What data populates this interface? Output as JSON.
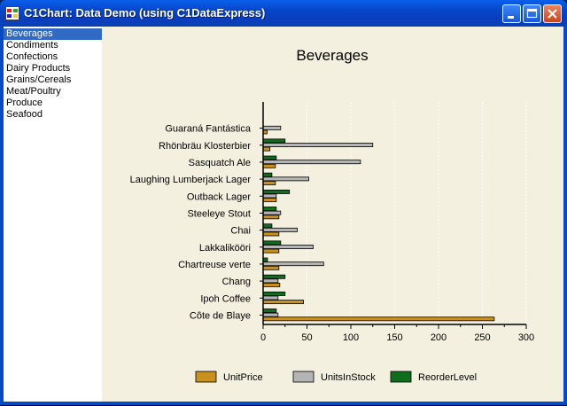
{
  "window": {
    "title": "C1Chart: Data Demo (using C1DataExpress)",
    "controls": {
      "minimize": "minimize",
      "maximize": "maximize",
      "close": "close"
    }
  },
  "categories_list": {
    "selected_index": 0,
    "items": [
      "Beverages",
      "Condiments",
      "Confections",
      "Dairy Products",
      "Grains/Cereals",
      "Meat/Poultry",
      "Produce",
      "Seafood"
    ]
  },
  "colors": {
    "unit_price": "#C8901C",
    "units_in_stock": "#B4B4B4",
    "reorder_level": "#0F6E1E",
    "selection": "#316AC5",
    "chart_bg": "#F3F0E0"
  },
  "chart_data": {
    "type": "bar",
    "orientation": "horizontal",
    "title": "Beverages",
    "categories": [
      "Guaraná Fantástica",
      "Rhönbräu Klosterbier",
      "Sasquatch Ale",
      "Laughing Lumberjack Lager",
      "Outback Lager",
      "Steeleye Stout",
      "Chai",
      "Lakkalikööri",
      "Chartreuse verte",
      "Chang",
      "Ipoh Coffee",
      "Côte de Blaye"
    ],
    "series": [
      {
        "name": "UnitPrice",
        "color": "#C8901C",
        "values": [
          4.5,
          7.75,
          14,
          14,
          15,
          18,
          18,
          18,
          18,
          19,
          46,
          263.5
        ]
      },
      {
        "name": "UnitsInStock",
        "color": "#B4B4B4",
        "values": [
          20,
          125,
          111,
          52,
          15,
          20,
          39,
          57,
          69,
          17,
          17,
          17
        ]
      },
      {
        "name": "ReorderLevel",
        "color": "#0F6E1E",
        "values": [
          0,
          25,
          15,
          10,
          30,
          15,
          10,
          20,
          5,
          25,
          25,
          15
        ]
      }
    ],
    "xlim": [
      0,
      300
    ],
    "xticks": [
      0,
      50,
      100,
      150,
      200,
      250,
      300
    ],
    "grid": true,
    "legend": "bottom"
  }
}
